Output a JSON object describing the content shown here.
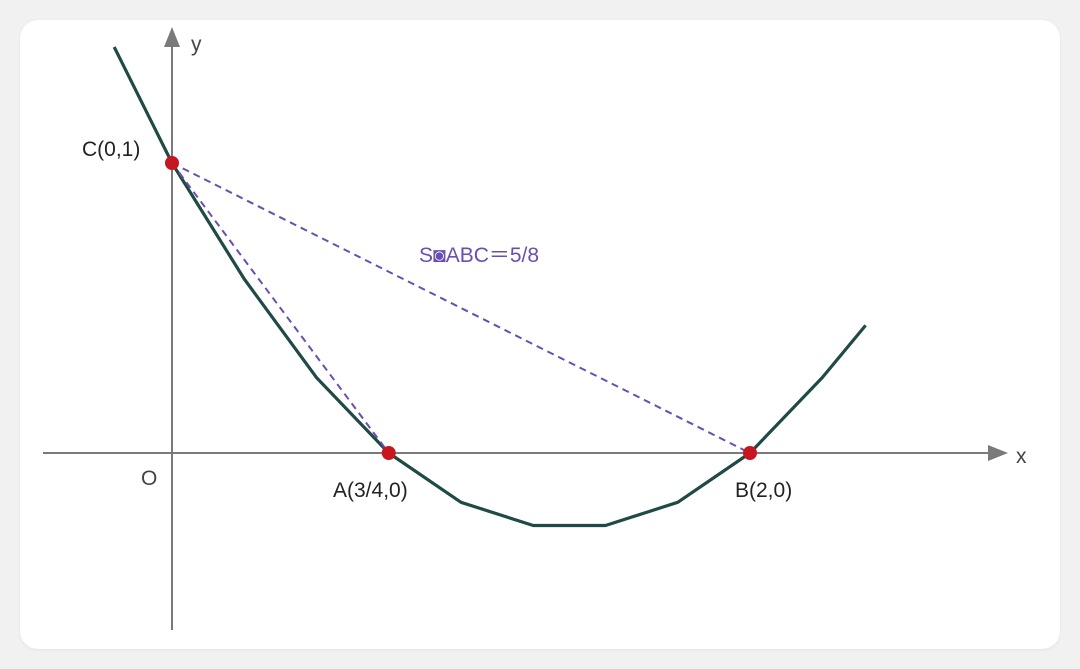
{
  "axes": {
    "x_label": "x",
    "y_label": "y",
    "origin_label": "O"
  },
  "points": {
    "A": {
      "label": "A(3/4,0)",
      "x": 0.75,
      "y": 0
    },
    "B": {
      "label": "B(2,0)",
      "x": 2,
      "y": 0
    },
    "C": {
      "label": "C(0,1)",
      "x": 0,
      "y": 1
    }
  },
  "curve": {
    "equation_points": [
      [
        -0.2,
        1.4
      ],
      [
        0,
        1
      ],
      [
        0.25,
        0.6
      ],
      [
        0.5,
        0.26
      ],
      [
        0.75,
        0
      ],
      [
        1,
        -0.17
      ],
      [
        1.25,
        -0.25
      ],
      [
        1.5,
        -0.25
      ],
      [
        1.75,
        -0.17
      ],
      [
        2,
        0
      ],
      [
        2.25,
        0.26
      ],
      [
        2.4,
        0.44
      ]
    ]
  },
  "triangle": {
    "area_label": "S◙ABC＝5/8"
  },
  "colors": {
    "curve": "#1f4a45",
    "dashed": "#6a4fb0",
    "point": "#c6161f",
    "axis": "#7a7a7a"
  }
}
